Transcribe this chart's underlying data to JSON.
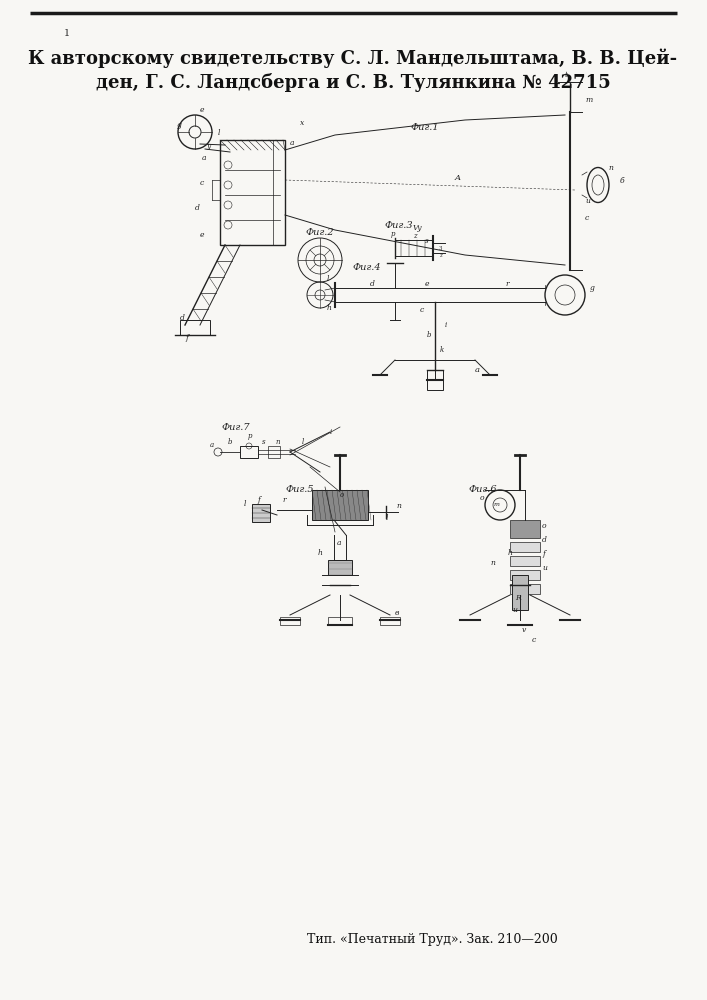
{
  "bg_color": "#f8f7f4",
  "title_line1": "К авторскому свидетельству С. Л. Мандельштама, В. В. Цей-",
  "title_line2": "ден, Г. С. Ландсберга и С. В. Тулянкина № 42715",
  "footer_text": "Тип. «Печатный Труд». Зак. 210—200",
  "top_border_color": "#1a1a1a",
  "text_color": "#111111",
  "lc": "#222222",
  "title_fontsize": 13.0,
  "footer_fontsize": 9.0,
  "fig1_label": "Фиг.1",
  "fig2_label": "Фиг.2",
  "fig3_label": "Фиг.3",
  "fig4_label": "Фиг.4",
  "fig5_label": "Фиг.5",
  "fig6_label": "Фиг.6",
  "fig7_label": "Фиг.7"
}
